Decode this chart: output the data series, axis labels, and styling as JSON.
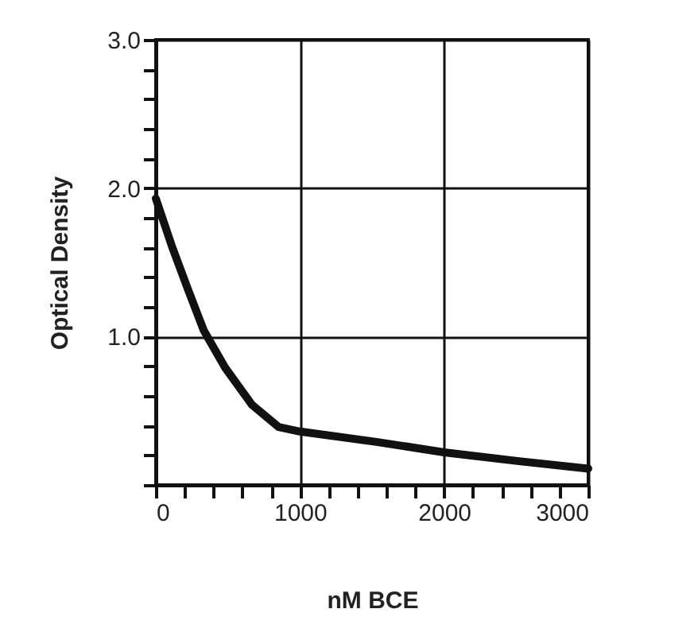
{
  "chart_data": {
    "type": "line",
    "xlabel": "nM BCE",
    "ylabel": "Optical Density",
    "x": [
      0,
      111,
      222,
      333,
      481,
      667,
      852,
      1000,
      1530,
      2000,
      2520,
      3000
    ],
    "series": [
      {
        "color": "#111111",
        "values": [
          1.93,
          1.61,
          1.32,
          1.04,
          0.79,
          0.54,
          0.39,
          0.36,
          0.29,
          0.22,
          0.16,
          0.11
        ]
      }
    ],
    "xlim": [
      0,
      3000
    ],
    "ylim": [
      0,
      3
    ],
    "xticks": [
      0,
      {
        "value": 200,
        "label": null
      },
      {
        "value": 400,
        "label": null
      },
      {
        "value": 600,
        "label": null
      },
      {
        "value": 800,
        "label": null
      },
      1000,
      {
        "value": 1200,
        "label": null
      },
      {
        "value": 1400,
        "label": null
      },
      {
        "value": 1600,
        "label": null
      },
      {
        "value": 1800,
        "label": null
      },
      2000,
      {
        "value": 2200,
        "label": null
      },
      {
        "value": 2400,
        "label": null
      },
      {
        "value": 2600,
        "label": null
      },
      {
        "value": 2800,
        "label": null
      },
      3000
    ],
    "yticks": [
      {
        "value": 0,
        "label": null
      },
      {
        "value": 0.2,
        "label": null
      },
      {
        "value": 0.4,
        "label": null
      },
      {
        "value": 0.6,
        "label": null
      },
      {
        "value": 0.8,
        "label": null
      },
      {
        "value": 1,
        "label": "1.0"
      },
      {
        "value": 1.2,
        "label": null
      },
      {
        "value": 1.4,
        "label": null
      },
      {
        "value": 1.6,
        "label": null
      },
      {
        "value": 1.8,
        "label": null
      },
      {
        "value": 2,
        "label": "2.0"
      },
      {
        "value": 2.2,
        "label": null
      },
      {
        "value": 2.4,
        "label": null
      },
      {
        "value": 2.6,
        "label": null
      },
      {
        "value": 2.8,
        "label": null
      },
      {
        "value": 3,
        "label": "3.0"
      }
    ],
    "grid": true,
    "line_style": "solid",
    "marker": "none"
  }
}
